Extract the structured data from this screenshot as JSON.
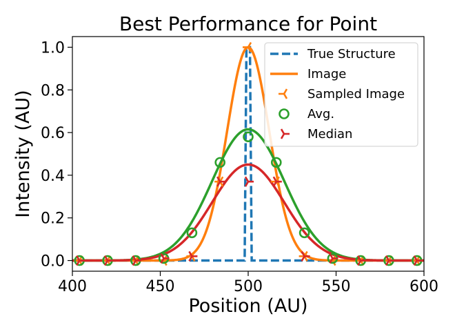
{
  "chart_data": {
    "type": "line",
    "title": "Best Performance for Point",
    "xlabel": "Position (AU)",
    "ylabel": "Intensity (AU)",
    "xlim": [
      400,
      600
    ],
    "ylim": [
      -0.05,
      1.05
    ],
    "xticks": [
      400,
      450,
      500,
      550,
      600
    ],
    "yticks": [
      0.0,
      0.2,
      0.4,
      0.6,
      0.8,
      1.0
    ],
    "xtick_labels": [
      "400",
      "450",
      "500",
      "550",
      "600"
    ],
    "ytick_labels": [
      "0.0",
      "0.2",
      "0.4",
      "0.6",
      "0.8",
      "1.0"
    ],
    "grid": false,
    "legend_position": "top-right",
    "series": [
      {
        "name": "True Structure",
        "kind": "line",
        "style": "dashed",
        "color": "#1f77b4",
        "x": [
          400,
          498,
          499,
          500,
          501,
          502,
          600
        ],
        "y": [
          0,
          0,
          1,
          1,
          1,
          0,
          0
        ]
      },
      {
        "name": "Image",
        "kind": "curve",
        "function": "gaussian",
        "amplitude": 1.0,
        "center": 500,
        "sigma": 12,
        "color": "#ff7f0e"
      },
      {
        "name": "Sampled Image",
        "kind": "markers",
        "marker": "tri_left",
        "color": "#ff7f0e",
        "x": [
          404,
          420,
          436,
          452,
          468,
          484,
          500,
          516,
          532,
          548,
          564,
          580,
          596
        ],
        "y": [
          0,
          0,
          0,
          0,
          0.02,
          0.37,
          1.0,
          0.37,
          0.02,
          0,
          0,
          0,
          0
        ]
      },
      {
        "name": "Avg.",
        "kind": "markers",
        "marker": "circle_open",
        "color": "#2ca02c",
        "fit": {
          "function": "gaussian",
          "amplitude": 0.615,
          "center": 500,
          "sigma": 20.5
        },
        "x": [
          404,
          420,
          436,
          452,
          468,
          484,
          500,
          516,
          532,
          548,
          564,
          580,
          596
        ],
        "y": [
          0,
          0,
          0,
          0.01,
          0.13,
          0.46,
          0.58,
          0.46,
          0.13,
          0.01,
          0,
          0,
          0
        ]
      },
      {
        "name": "Median",
        "kind": "markers",
        "marker": "tri_right",
        "color": "#d62728",
        "fit": {
          "function": "gaussian",
          "amplitude": 0.45,
          "center": 500,
          "sigma": 20.5
        },
        "x": [
          404,
          420,
          436,
          452,
          468,
          484,
          500,
          516,
          532,
          548,
          564,
          580,
          596
        ],
        "y": [
          0,
          0,
          0,
          0.01,
          0.02,
          0.37,
          0.37,
          0.37,
          0.02,
          0.01,
          0,
          0,
          0
        ]
      }
    ]
  }
}
